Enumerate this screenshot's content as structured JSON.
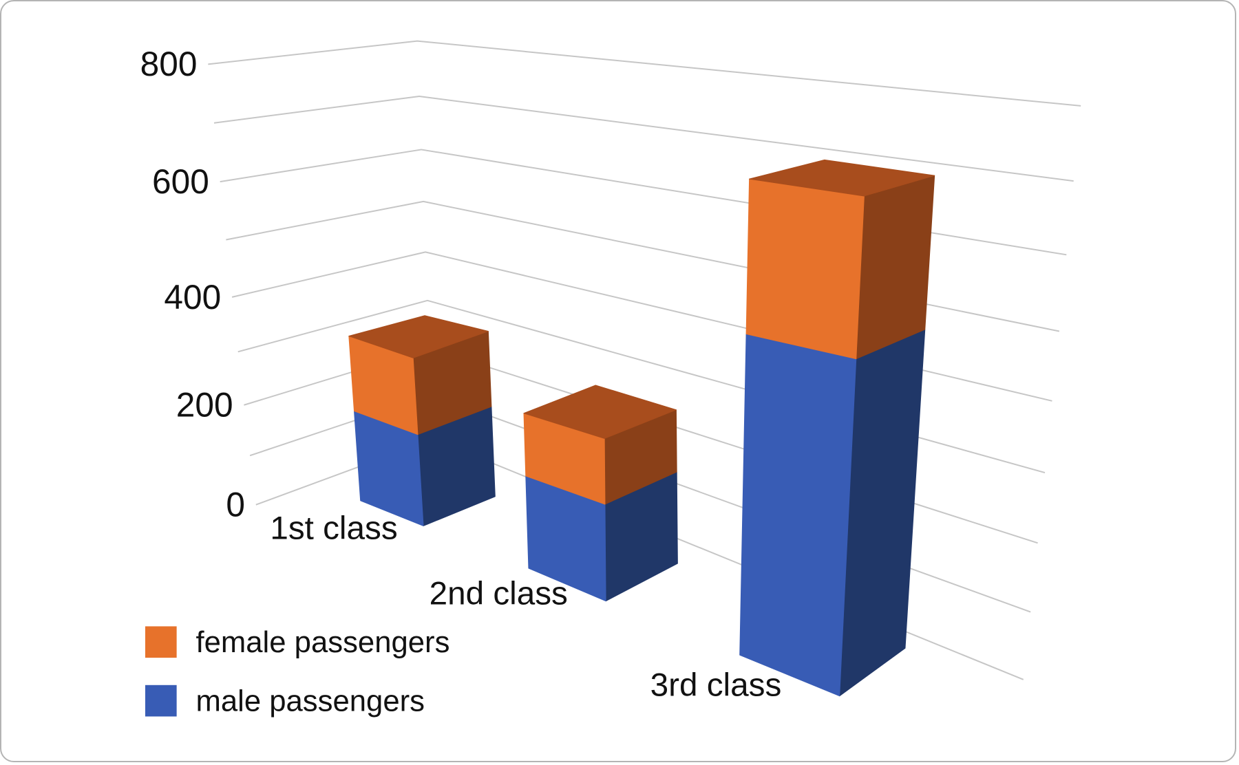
{
  "chart_data": {
    "type": "bar",
    "variant": "3d-stacked-column",
    "title": "",
    "categories": [
      "1st class",
      "2nd class",
      "3rd class"
    ],
    "series": [
      {
        "name": "male passengers",
        "values": [
          180,
          179,
          510
        ],
        "front_color": "#385CB5",
        "side_color": "#203768"
      },
      {
        "name": "female passengers",
        "values": [
          145,
          106,
          196
        ],
        "front_color": "#E7722B",
        "side_color": "#8A4018",
        "top_color": "#A84D1D"
      }
    ],
    "ylim": [
      0,
      800
    ],
    "ytick_step": 200,
    "gridline_step": 100,
    "yticks": [
      "0",
      "200",
      "400",
      "600",
      "800"
    ],
    "grid_on": true,
    "legend": {
      "position": "bottom-left",
      "entries": [
        {
          "label": "female passengers",
          "color": "#E7722B"
        },
        {
          "label": "male passengers",
          "color": "#385CB5"
        }
      ]
    },
    "colors": {
      "grid": "#C6C6C6",
      "text": "#111111",
      "frame_border": "#B4B4B4",
      "background": "#FFFFFF"
    }
  }
}
